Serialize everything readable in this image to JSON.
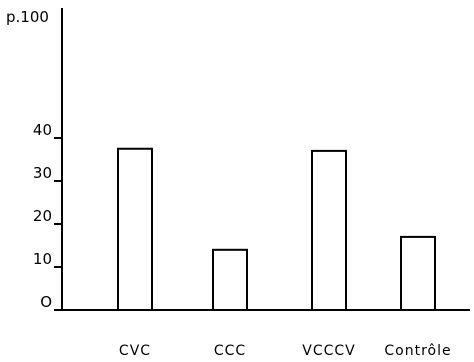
{
  "chart_data": {
    "type": "bar",
    "unit_label": "p.100",
    "categories": [
      "CVC",
      "CCC",
      "VCCCV",
      "Contrôle"
    ],
    "values": [
      37.5,
      14,
      37,
      17
    ],
    "yticks": [
      0,
      10,
      20,
      30,
      40
    ],
    "ytick_labels": [
      "O",
      "10",
      "20",
      "30",
      "40"
    ],
    "ylim": [
      0,
      45
    ],
    "xlabel": "",
    "ylabel": "",
    "title": "",
    "grid": false,
    "legend": "none",
    "colors": {
      "bar_fill": "#ffffff",
      "stroke": "#000000"
    }
  }
}
